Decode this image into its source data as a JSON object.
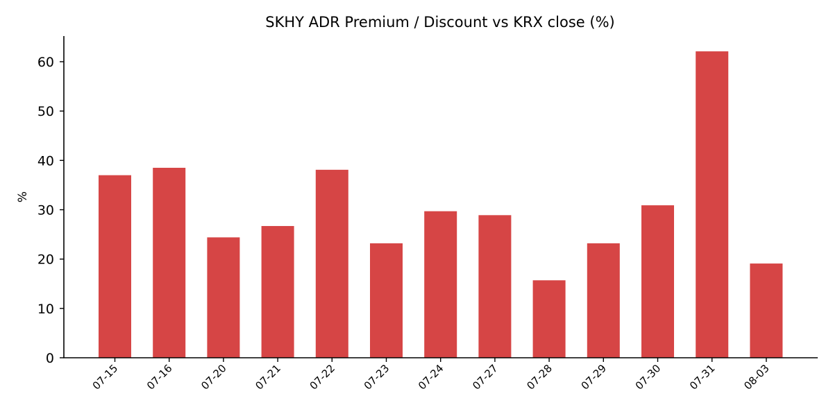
{
  "chart_data": {
    "type": "bar",
    "title": "SKHY ADR Premium / Discount vs KRX close (%)",
    "xlabel": "",
    "ylabel": "%",
    "categories": [
      "07-15",
      "07-16",
      "07-20",
      "07-21",
      "07-22",
      "07-23",
      "07-24",
      "07-27",
      "07-28",
      "07-29",
      "07-30",
      "07-31",
      "08-03"
    ],
    "values": [
      37.0,
      38.5,
      24.4,
      26.7,
      38.1,
      23.2,
      29.7,
      28.9,
      15.7,
      23.2,
      30.9,
      62.1,
      19.1
    ],
    "ylim": [
      0,
      65.2
    ],
    "yticks": [
      0,
      10,
      20,
      30,
      40,
      50,
      60
    ],
    "bar_color": "#d64545",
    "grid": false,
    "legend": "none"
  }
}
